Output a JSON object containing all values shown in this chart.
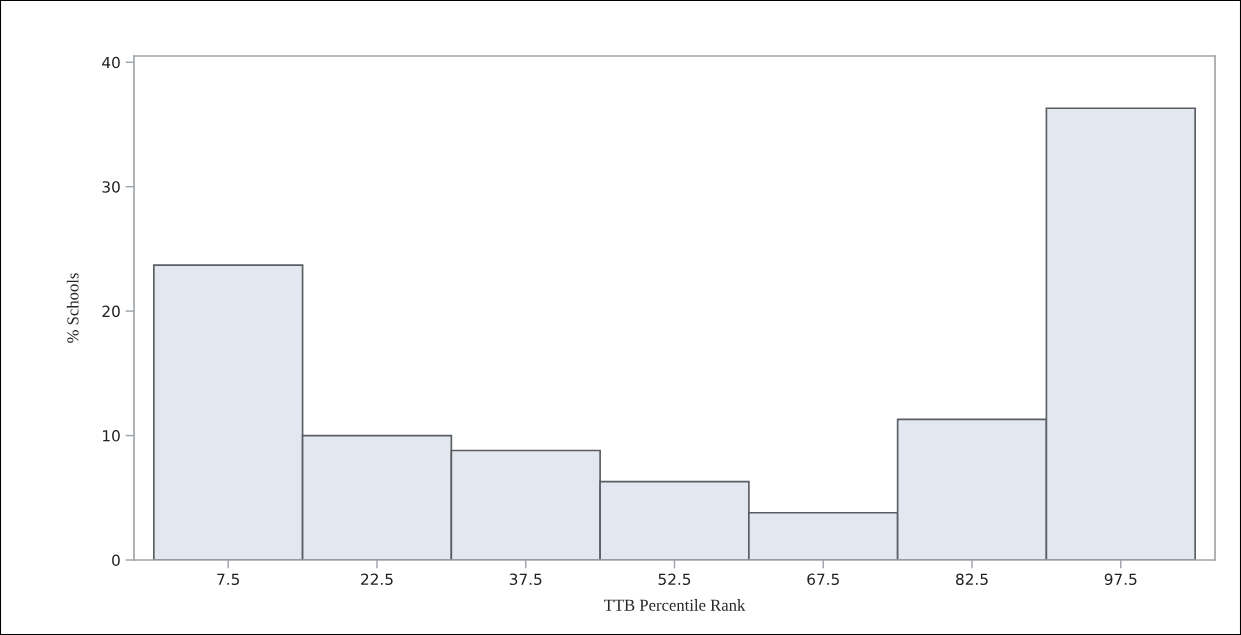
{
  "chart_data": {
    "type": "histogram",
    "xlabel": "TTB Percentile Rank",
    "ylabel": "% Schools",
    "bins": [
      0,
      15,
      30,
      45,
      60,
      75,
      90,
      105
    ],
    "values": [
      23.7,
      10.0,
      8.8,
      6.3,
      3.8,
      11.3,
      36.3
    ],
    "color": "#e3e8f0",
    "xlim": [
      -2,
      107
    ],
    "xticks": [
      7.5,
      22.5,
      37.5,
      52.5,
      67.5,
      82.5,
      97.5
    ],
    "ylim": [
      0,
      40.5
    ],
    "yticks": [
      0,
      10,
      20,
      30,
      40
    ],
    "grid": false
  }
}
